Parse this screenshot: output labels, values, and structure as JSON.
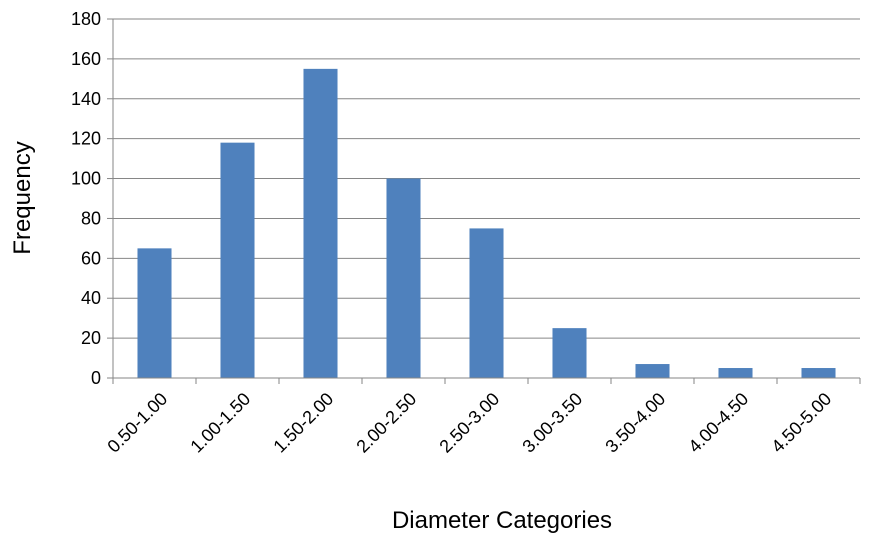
{
  "chart_data": {
    "type": "bar",
    "categories": [
      "0.50-1.00",
      "1.00-1.50",
      "1.50-2.00",
      "2.00-2.50",
      "2.50-3.00",
      "3.00-3.50",
      "3.50-4.00",
      "4.00-4.50",
      "4.50-5.00"
    ],
    "values": [
      65,
      118,
      155,
      100,
      75,
      25,
      7,
      5,
      5
    ],
    "xlabel": "Diameter Categories",
    "ylabel": "Frequency",
    "ylim": [
      0,
      180
    ],
    "yticks": [
      0,
      20,
      40,
      60,
      80,
      100,
      120,
      140,
      160,
      180
    ],
    "grid": true,
    "legend": "none",
    "colors": {
      "bar": "#4f81bd",
      "grid": "#868686",
      "axis": "#868686"
    }
  }
}
